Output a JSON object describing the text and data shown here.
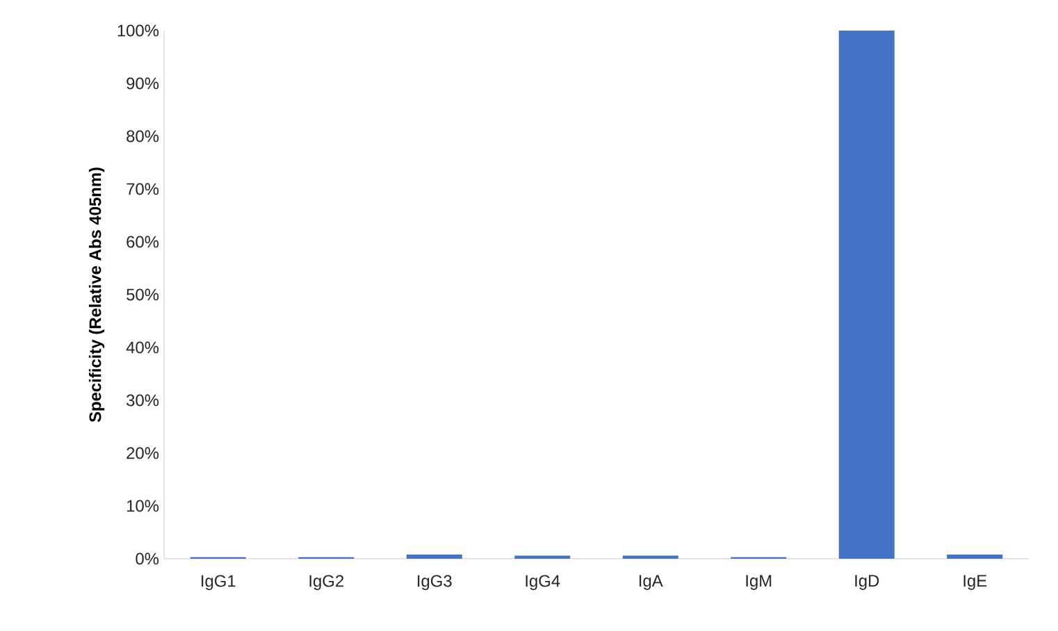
{
  "chart_data": {
    "type": "bar",
    "ylabel": "Specificity (Relative Abs 405nm)",
    "categories": [
      "IgG1",
      "IgG2",
      "IgG3",
      "IgG4",
      "IgA",
      "IgM",
      "IgD",
      "IgE"
    ],
    "values": [
      0.3,
      0.3,
      0.8,
      0.6,
      0.6,
      0.3,
      100,
      0.8
    ],
    "color": "#4472c4",
    "ylim": [
      0,
      100
    ],
    "yticks": [
      {
        "value": 0,
        "label": "0%"
      },
      {
        "value": 10,
        "label": "10%"
      },
      {
        "value": 20,
        "label": "20%"
      },
      {
        "value": 30,
        "label": "30%"
      },
      {
        "value": 40,
        "label": "40%"
      },
      {
        "value": 50,
        "label": "50%"
      },
      {
        "value": 60,
        "label": "60%"
      },
      {
        "value": 70,
        "label": "70%"
      },
      {
        "value": 80,
        "label": "80%"
      },
      {
        "value": 90,
        "label": "90%"
      },
      {
        "value": 100,
        "label": "100%"
      }
    ],
    "grid": false
  }
}
